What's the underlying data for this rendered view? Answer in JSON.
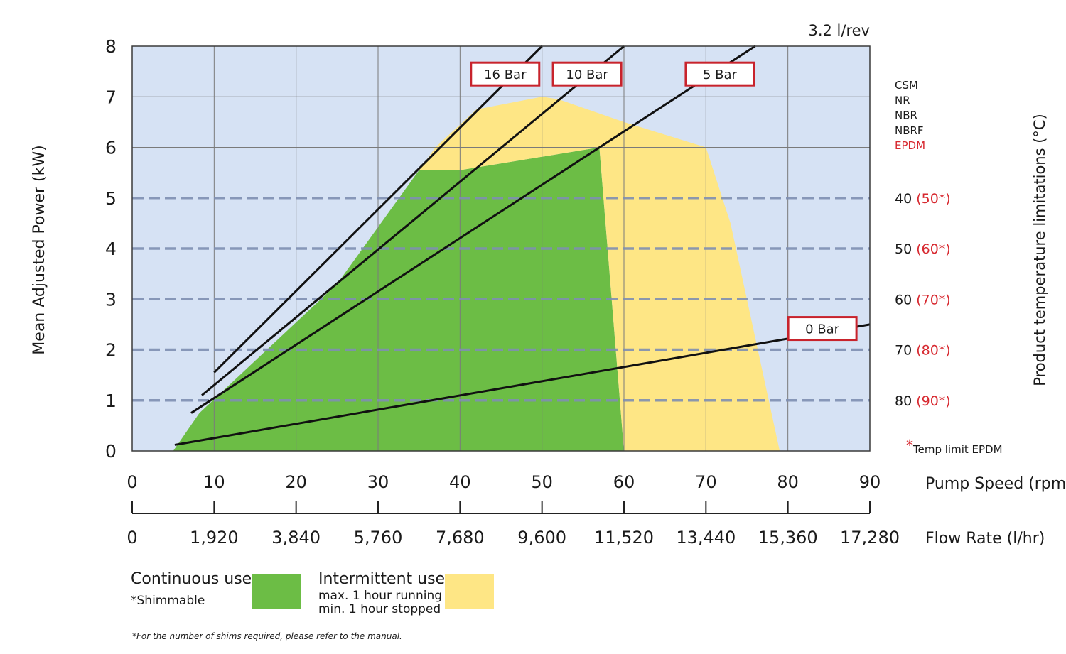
{
  "chart_data": {
    "type": "area",
    "displacement_label": "3.2 l/rev",
    "ylabel": "Mean Adjusted Power (kW)",
    "right_ylabel": "Product temperature limitations (°C)",
    "x_axis_label": "Pump Speed (rpm)",
    "secondary_x_axis_label": "Flow Rate (l/hr)",
    "xlim": [
      0,
      90
    ],
    "ylim": [
      0,
      8
    ],
    "x_ticks": [
      "0",
      "10",
      "20",
      "30",
      "40",
      "50",
      "60",
      "70",
      "80",
      "90"
    ],
    "y_ticks": [
      "0",
      "1",
      "2",
      "3",
      "4",
      "5",
      "6",
      "7",
      "8"
    ],
    "flow_ticks": [
      "0",
      "1,920",
      "3,840",
      "5,760",
      "7,680",
      "9,600",
      "11,520",
      "13,440",
      "15,360",
      "17,280"
    ],
    "elastomers": [
      {
        "label": "CSM",
        "color": "#1a1a1a"
      },
      {
        "label": "NR",
        "color": "#1a1a1a"
      },
      {
        "label": "NBR",
        "color": "#1a1a1a"
      },
      {
        "label": "NBRF",
        "color": "#1a1a1a"
      },
      {
        "label": "EPDM",
        "color": "#d7282f"
      }
    ],
    "temperature_limits": [
      {
        "power": 5,
        "temp": "40",
        "epdm": "(50*)"
      },
      {
        "power": 4,
        "temp": "50",
        "epdm": "(60*)"
      },
      {
        "power": 3,
        "temp": "60",
        "epdm": "(70*)"
      },
      {
        "power": 2,
        "temp": "70",
        "epdm": "(80*)"
      },
      {
        "power": 1,
        "temp": "80",
        "epdm": "(90*)"
      }
    ],
    "footnote_star": "*",
    "footnote_text": "Temp limit EPDM",
    "pressure_lines": [
      {
        "label": "16 Bar",
        "points": [
          [
            10,
            1.55
          ],
          [
            50,
            8.0
          ]
        ]
      },
      {
        "label": "10 Bar",
        "points": [
          [
            8.5,
            1.1
          ],
          [
            60,
            8.0
          ]
        ]
      },
      {
        "label": "5 Bar",
        "points": [
          [
            7.2,
            0.75
          ],
          [
            76,
            8.0
          ]
        ]
      },
      {
        "label": "0 Bar",
        "points": [
          [
            5.2,
            0.12
          ],
          [
            90,
            2.5
          ]
        ]
      }
    ],
    "pressure_label_positions": [
      {
        "label": "16 Bar",
        "x": 45.5,
        "y": 7.45
      },
      {
        "label": "10 Bar",
        "x": 55.5,
        "y": 7.45
      },
      {
        "label": "5 Bar",
        "x": 71.7,
        "y": 7.45
      },
      {
        "label": "0 Bar",
        "x": 84.2,
        "y": 2.42
      }
    ],
    "series": [
      {
        "name": "Continuous use",
        "color": "#6cbd45",
        "polygon": [
          [
            5,
            0
          ],
          [
            8.2,
            0.75
          ],
          [
            25,
            3.3
          ],
          [
            35,
            5.55
          ],
          [
            40,
            5.55
          ],
          [
            57,
            6.0
          ],
          [
            60,
            0
          ]
        ]
      },
      {
        "name": "Intermittent use",
        "color": "#fee685",
        "polygon": [
          [
            35,
            5.55
          ],
          [
            37,
            6.0
          ],
          [
            42,
            6.75
          ],
          [
            50,
            7.0
          ],
          [
            52,
            6.95
          ],
          [
            60,
            6.5
          ],
          [
            70,
            6.0
          ],
          [
            73,
            4.5
          ],
          [
            79,
            0
          ],
          [
            60,
            0
          ],
          [
            57,
            6.0
          ],
          [
            40,
            5.55
          ]
        ]
      }
    ],
    "plot_background": "#d6e2f4",
    "grid": true,
    "dashed_lines_at": [
      1,
      2,
      3,
      4,
      5
    ]
  },
  "legend": {
    "continuous_title": "Continuous use",
    "continuous_note": "*Shimmable",
    "continuous_color": "#6cbd45",
    "intermittent_title": "Intermittent use",
    "intermittent_line1": "max. 1 hour running",
    "intermittent_line2": "min. 1 hour stopped",
    "intermittent_color": "#fee685"
  },
  "footnote": {
    "star": "*",
    "text": "For the number of shims required, please refer to the manual."
  }
}
